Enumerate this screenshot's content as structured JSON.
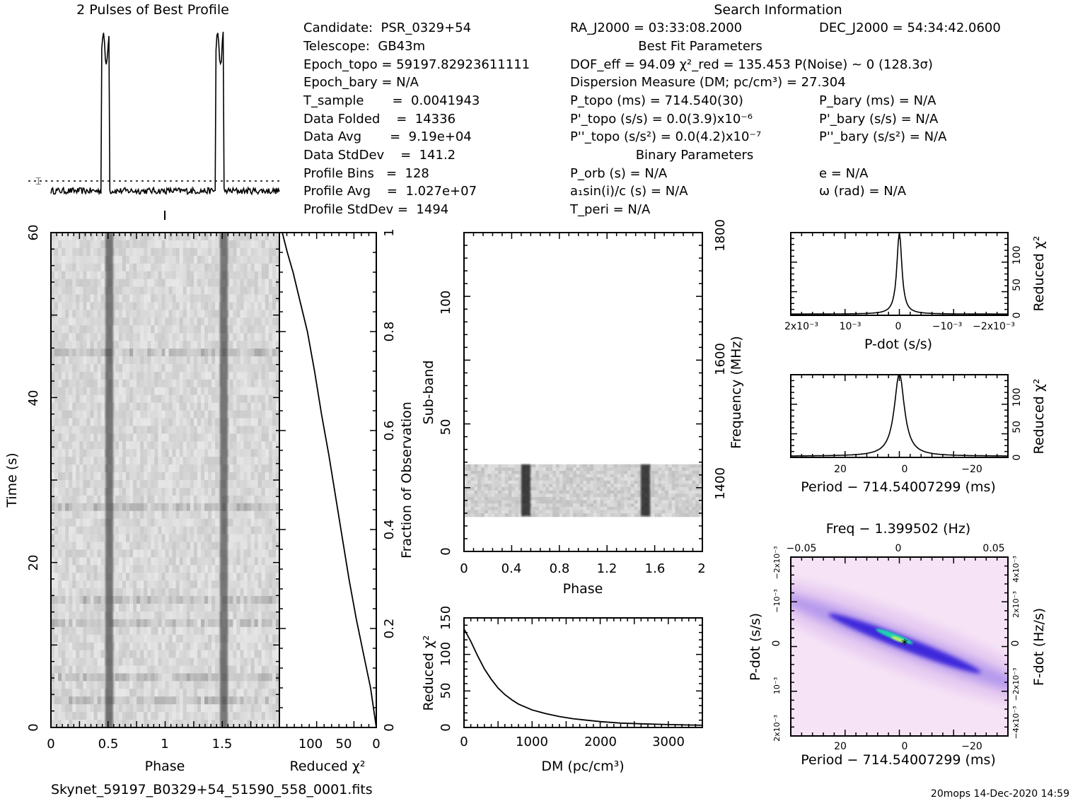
{
  "header": {
    "profile_title": "2 Pulses of Best Profile",
    "search_title": "Search Information",
    "best_fit_title": "Best Fit Parameters",
    "binary_title": "Binary Parameters"
  },
  "info_col1": [
    "Candidate:  PSR_0329+54",
    "Telescope:  GB43m",
    "Epoch_topo = 59197.82923611111",
    "Epoch_bary = N/A",
    "T_sample       =  0.0041943",
    "Data Folded    =  14336",
    "Data Avg       =  9.19e+04",
    "Data StdDev    =  141.2",
    "Profile Bins   =  128",
    "Profile Avg    =  1.027e+07",
    "Profile StdDev =  1494"
  ],
  "info_col2": [
    "RA_J2000 = 03:33:08.2000",
    "DOF_eff = 94.09  χ²_red = 135.453  P(Noise) ~ 0   (128.3σ)",
    "Dispersion Measure (DM; pc/cm³) = 27.304",
    "P_topo (ms) =  714.540(30)",
    "P'_topo (s/s) = 0.0(3.9)x10⁻⁶",
    "P''_topo (s/s²) = 0.0(4.2)x10⁻⁷",
    "P_orb (s) = N/A",
    "a₁sin(i)/c (s) = N/A",
    "T_peri = N/A"
  ],
  "info_col3": [
    "DEC_J2000 = 54:34:42.0600",
    "P_bary (ms) = N/A",
    "P'_bary (s/s) = N/A",
    "P''_bary (s/s²) = N/A",
    "e = N/A",
    "ω (rad) = N/A"
  ],
  "footer": {
    "filename": "Skynet_59197_B0329+54_51590_558_0001.fits",
    "stamp": "20mops 14-Dec-2020 14:59"
  },
  "colors": {
    "ink": "#000000",
    "paper": "#ffffff",
    "greyscale_dark": "#1a1a1a",
    "map_low": "#f7e6f7",
    "map_mid": "#3a1fd6",
    "map_high": "#28e0a0"
  },
  "chart_data": [
    {
      "id": "profile",
      "type": "line",
      "title": "2 Pulses of Best Profile",
      "xlim": [
        0,
        2
      ],
      "pulse_centers": [
        0.5,
        1.5
      ],
      "baseline_level": 0.06,
      "peak_level": 1.0
    },
    {
      "id": "time_phase",
      "type": "heatmap",
      "xlabel": "Phase",
      "ylabel": "Time (s)",
      "xlim": [
        0,
        2
      ],
      "ylim": [
        0,
        60
      ],
      "x_ticks": [
        "0",
        "0.5",
        "1",
        "1.5"
      ],
      "y_ticks": [
        "0",
        "20",
        "40",
        "60"
      ],
      "pulse_phases": [
        0.5,
        1.5
      ]
    },
    {
      "id": "chi_vs_time",
      "type": "line",
      "xlabel": "Reduced χ²",
      "ylabel": "Fraction of Observation",
      "x_reversed": true,
      "xlim": [
        0,
        135
      ],
      "ylim": [
        0,
        1
      ],
      "x_ticks": [
        "100",
        "50",
        "0"
      ],
      "y_ticks": [
        "0",
        "0.2",
        "0.4",
        "0.6",
        "0.8",
        "1"
      ],
      "points": [
        [
          0,
          0
        ],
        [
          2,
          0.02
        ],
        [
          8,
          0.08
        ],
        [
          18,
          0.15
        ],
        [
          28,
          0.22
        ],
        [
          38,
          0.3
        ],
        [
          47,
          0.38
        ],
        [
          56,
          0.46
        ],
        [
          66,
          0.55
        ],
        [
          76,
          0.63
        ],
        [
          86,
          0.72
        ],
        [
          96,
          0.8
        ],
        [
          106,
          0.86
        ],
        [
          116,
          0.92
        ],
        [
          124,
          0.96
        ],
        [
          131,
          1.0
        ]
      ]
    },
    {
      "id": "subband_phase",
      "type": "heatmap",
      "xlabel": "Phase",
      "ylabel": "Sub-band",
      "right_label": "Frequency (MHz)",
      "xlim": [
        0,
        2
      ],
      "ylim": [
        0,
        128
      ],
      "x_ticks": [
        "0",
        "0.4",
        "0.8",
        "1.2",
        "1.6",
        "2"
      ],
      "y_ticks": [
        "0",
        "50",
        "100"
      ],
      "freq_ticks": [
        "1400",
        "1600",
        "1800"
      ],
      "band_rows": [
        14,
        35
      ],
      "pulse_phases": [
        0.5,
        1.5
      ]
    },
    {
      "id": "dm_curve",
      "type": "line",
      "xlabel": "DM (pc/cm³)",
      "ylabel": "Reduced χ²",
      "xlim": [
        0,
        3500
      ],
      "ylim": [
        0,
        150
      ],
      "x_ticks": [
        "0",
        "1000",
        "2000",
        "3000"
      ],
      "y_ticks": [
        "0",
        "50",
        "100",
        "150"
      ],
      "points": [
        [
          0,
          135
        ],
        [
          100,
          118
        ],
        [
          200,
          98
        ],
        [
          300,
          80
        ],
        [
          400,
          66
        ],
        [
          500,
          54
        ],
        [
          600,
          45
        ],
        [
          700,
          38
        ],
        [
          800,
          32
        ],
        [
          1000,
          24
        ],
        [
          1200,
          19
        ],
        [
          1400,
          15
        ],
        [
          1600,
          12
        ],
        [
          1800,
          10
        ],
        [
          2000,
          8
        ],
        [
          2300,
          6
        ],
        [
          2600,
          5
        ],
        [
          3000,
          4
        ],
        [
          3500,
          3
        ]
      ]
    },
    {
      "id": "pdot_curve",
      "type": "line",
      "xlabel": "P-dot (s/s)",
      "ylabel": "Reduced χ²",
      "x_reversed": true,
      "xlim": [
        -0.0022,
        0.0022
      ],
      "ylim": [
        0,
        135
      ],
      "x_ticks": [
        "2x10⁻³",
        "10⁻³",
        "0",
        "−10⁻³",
        "−2x10⁻³"
      ],
      "y_ticks": [
        "0",
        "50",
        "100"
      ],
      "peak": 135
    },
    {
      "id": "period_curve",
      "type": "line",
      "xlabel": "Period − 714.54007299 (ms)",
      "ylabel": "Reduced χ²",
      "x_reversed": true,
      "xlim": [
        -32,
        32
      ],
      "ylim": [
        0,
        135
      ],
      "x_ticks": [
        "20",
        "0",
        "−20"
      ],
      "y_ticks": [
        "0",
        "50",
        "100"
      ],
      "peak": 135
    },
    {
      "id": "p_pdot_map",
      "type": "heatmap",
      "title": "Freq − 1.399502 (Hz)",
      "xlabel": "Period − 714.54007299 (ms)",
      "ylabel": "P-dot (s/s)",
      "right_label": "F-dot (Hz/s)",
      "x_ticks": [
        "20",
        "0",
        "−20"
      ],
      "top_ticks": [
        "−0.05",
        "0",
        "0.05"
      ],
      "y_ticks": [
        "2x10⁻³",
        "10⁻³",
        "0",
        "−10⁻³",
        "−2x10⁻³"
      ],
      "right_ticks": [
        "−4x10⁻³",
        "−2x10⁻³",
        "0",
        "2x10⁻³",
        "4x10⁻³"
      ]
    }
  ]
}
